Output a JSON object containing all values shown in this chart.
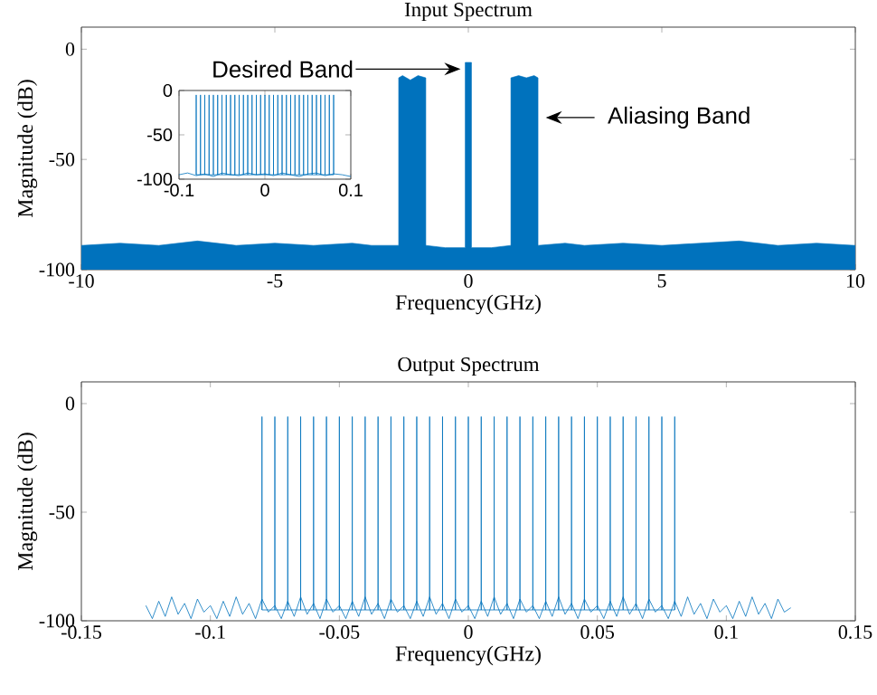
{
  "chart_data": [
    {
      "type": "area",
      "title": "Input Spectrum",
      "xlabel": "Frequency(GHz)",
      "ylabel": "Magnitude (dB)",
      "xlim": [
        -10,
        10
      ],
      "ylim": [
        -100,
        10
      ],
      "xticks": [
        -10,
        -5,
        0,
        5,
        10
      ],
      "yticks": [
        -100,
        -50,
        0
      ],
      "series": [
        {
          "color": "#0072bd",
          "x": [
            -10,
            -10,
            -9,
            -8,
            -7,
            -6,
            -5,
            -4,
            -3,
            -2.5,
            -1.8,
            -1.8,
            -1.7,
            -1.5,
            -1.3,
            -1.1,
            -1.1,
            -0.6,
            -0.08,
            -0.08,
            0.08,
            0.08,
            0.6,
            1.1,
            1.1,
            1.3,
            1.5,
            1.7,
            1.8,
            1.8,
            2.5,
            3,
            4,
            5,
            6,
            7,
            8,
            9,
            10,
            10
          ],
          "values": [
            -100,
            -89,
            -88,
            -89,
            -87,
            -89,
            -88,
            -89,
            -88,
            -89,
            -89,
            -13,
            -12,
            -14,
            -12,
            -13,
            -89,
            -90,
            -90,
            -6,
            -6,
            -90,
            -90,
            -89,
            -13,
            -12,
            -13,
            -12,
            -13,
            -89,
            -88,
            -89,
            -88,
            -89,
            -88,
            -87,
            -89,
            -88,
            -89,
            -100
          ]
        }
      ],
      "annotations": [
        {
          "text": "Desired Band",
          "x": -0.2,
          "y": -9
        },
        {
          "text": "Aliasing Band",
          "x": 2,
          "y": -31
        }
      ]
    },
    {
      "type": "line",
      "xlim": [
        -0.1,
        0.1
      ],
      "ylim": [
        -100,
        0
      ],
      "xticks": [
        -0.1,
        0,
        0.1
      ],
      "yticks": [
        -100,
        -50,
        0
      ],
      "series": [
        {
          "color": "#0072bd",
          "x": [
            -0.1,
            -0.09,
            -0.08,
            -0.07,
            -0.06,
            -0.05,
            -0.04,
            -0.03,
            -0.02,
            -0.01,
            0,
            0.01,
            0.02,
            0.03,
            0.04,
            0.05,
            0.06,
            0.07,
            0.08,
            0.09,
            0.1
          ],
          "values": [
            -95,
            -93,
            -96,
            -94,
            -97,
            -93,
            -95,
            -96,
            -93,
            -95,
            -94,
            -96,
            -93,
            -95,
            -97,
            -94,
            -93,
            -96,
            -94,
            -95,
            -97
          ]
        },
        {
          "color": "#0072bd",
          "x": [
            -0.08,
            -0.08,
            -0.08,
            -0.075,
            -0.075,
            -0.075,
            -0.07,
            -0.07,
            -0.07,
            -0.065,
            -0.065,
            -0.065,
            -0.06,
            -0.06,
            -0.06,
            -0.055,
            -0.055,
            -0.055,
            -0.05,
            -0.05,
            -0.05,
            -0.045,
            -0.045,
            -0.045,
            -0.04,
            -0.04,
            -0.04,
            -0.035,
            -0.035,
            -0.035,
            -0.03,
            -0.03,
            -0.03,
            -0.025,
            -0.025,
            -0.025,
            -0.02,
            -0.02,
            -0.02,
            -0.015,
            -0.015,
            -0.015,
            -0.01,
            -0.01,
            -0.01,
            -0.005,
            -0.005,
            -0.005,
            0,
            0,
            0,
            0.005,
            0.005,
            0.005,
            0.01,
            0.01,
            0.01,
            0.015,
            0.015,
            0.015,
            0.02,
            0.02,
            0.02,
            0.025,
            0.025,
            0.025,
            0.03,
            0.03,
            0.03,
            0.035,
            0.035,
            0.035,
            0.04,
            0.04,
            0.04,
            0.045,
            0.045,
            0.045,
            0.05,
            0.05,
            0.05,
            0.055,
            0.055,
            0.055,
            0.06,
            0.06,
            0.06,
            0.065,
            0.065,
            0.065,
            0.07,
            0.07,
            0.07,
            0.075,
            0.075,
            0.075,
            0.08,
            0.08,
            0.08
          ],
          "values": [
            -95,
            -5,
            -95,
            -95,
            -5,
            -95,
            -95,
            -5,
            -95,
            -95,
            -5,
            -95,
            -95,
            -5,
            -95,
            -95,
            -5,
            -95,
            -95,
            -5,
            -95,
            -95,
            -5,
            -95,
            -95,
            -5,
            -95,
            -95,
            -5,
            -95,
            -95,
            -5,
            -95,
            -95,
            -5,
            -95,
            -95,
            -5,
            -95,
            -95,
            -5,
            -95,
            -95,
            -5,
            -95,
            -95,
            -5,
            -95,
            -95,
            -5,
            -95,
            -95,
            -5,
            -95,
            -95,
            -5,
            -95,
            -95,
            -5,
            -95,
            -95,
            -5,
            -95,
            -95,
            -5,
            -95,
            -95,
            -5,
            -95,
            -95,
            -5,
            -95,
            -95,
            -5,
            -95,
            -95,
            -5,
            -95,
            -95,
            -5,
            -95,
            -95,
            -5,
            -95,
            -95,
            -5,
            -95,
            -95,
            -5,
            -95,
            -95,
            -5,
            -95,
            -95,
            -5,
            -95,
            -95,
            -5,
            -95
          ]
        }
      ]
    },
    {
      "type": "line",
      "title": "Output Spectrum",
      "xlabel": "Frequency(GHz)",
      "ylabel": "Magnitude (dB)",
      "xlim": [
        -0.15,
        0.15
      ],
      "ylim": [
        -100,
        10
      ],
      "xticks": [
        -0.15,
        -0.1,
        -0.05,
        0,
        0.05,
        0.1,
        0.15
      ],
      "yticks": [
        -100,
        -50,
        0
      ],
      "series": [
        {
          "color": "#0072bd",
          "x": [
            -0.125,
            -0.1225,
            -0.12,
            -0.1175,
            -0.115,
            -0.1125,
            -0.11,
            -0.1075,
            -0.105,
            -0.1025,
            -0.1,
            -0.0975,
            -0.095,
            -0.0925,
            -0.09,
            -0.0875,
            -0.085,
            -0.0825,
            -0.08,
            -0.0775,
            -0.075,
            -0.0725,
            -0.07,
            -0.0675,
            -0.065,
            -0.0625,
            -0.06,
            -0.0575,
            -0.055,
            -0.0525,
            -0.05,
            -0.0475,
            -0.045,
            -0.0425,
            -0.04,
            -0.0375,
            -0.035,
            -0.0325,
            -0.03,
            -0.0275,
            -0.025,
            -0.0225,
            -0.02,
            -0.0175,
            -0.015,
            -0.0125,
            -0.01,
            -0.0075,
            -0.005,
            -0.0025,
            0,
            0.0025,
            0.005,
            0.0075,
            0.01,
            0.0125,
            0.015,
            0.0175,
            0.02,
            0.0225,
            0.025,
            0.0275,
            0.03,
            0.0325,
            0.035,
            0.0375,
            0.04,
            0.0425,
            0.045,
            0.0475,
            0.05,
            0.0525,
            0.055,
            0.0575,
            0.06,
            0.0625,
            0.065,
            0.0675,
            0.07,
            0.0725,
            0.075,
            0.0775,
            0.08,
            0.0825,
            0.085,
            0.0875,
            0.09,
            0.0925,
            0.095,
            0.0975,
            0.1,
            0.1025,
            0.105,
            0.1075,
            0.11,
            0.1125,
            0.115,
            0.1175,
            0.12,
            0.1225,
            0.125
          ],
          "values": [
            -93,
            -99,
            -91,
            -98,
            -89,
            -97,
            -92,
            -99,
            -90,
            -96,
            -93,
            -99,
            -91,
            -98,
            -89,
            -97,
            -92,
            -99,
            -90,
            -96,
            -93,
            -99,
            -91,
            -98,
            -89,
            -97,
            -92,
            -99,
            -90,
            -96,
            -93,
            -99,
            -91,
            -98,
            -89,
            -97,
            -92,
            -99,
            -90,
            -96,
            -93,
            -99,
            -91,
            -98,
            -89,
            -97,
            -92,
            -99,
            -90,
            -96,
            -93,
            -99,
            -91,
            -98,
            -89,
            -97,
            -92,
            -99,
            -90,
            -96,
            -93,
            -99,
            -91,
            -98,
            -89,
            -97,
            -92,
            -99,
            -90,
            -96,
            -93,
            -99,
            -91,
            -98,
            -89,
            -97,
            -92,
            -99,
            -90,
            -96,
            -93,
            -99,
            -91,
            -98,
            -89,
            -97,
            -92,
            -99,
            -90,
            -96,
            -93,
            -99,
            -91,
            -98,
            -89,
            -97,
            -92,
            -99,
            -90,
            -96,
            -94
          ]
        },
        {
          "color": "#0072bd",
          "x": [
            -0.08,
            -0.08,
            -0.08,
            -0.075,
            -0.075,
            -0.075,
            -0.07,
            -0.07,
            -0.07,
            -0.065,
            -0.065,
            -0.065,
            -0.06,
            -0.06,
            -0.06,
            -0.055,
            -0.055,
            -0.055,
            -0.05,
            -0.05,
            -0.05,
            -0.045,
            -0.045,
            -0.045,
            -0.04,
            -0.04,
            -0.04,
            -0.035,
            -0.035,
            -0.035,
            -0.03,
            -0.03,
            -0.03,
            -0.025,
            -0.025,
            -0.025,
            -0.02,
            -0.02,
            -0.02,
            -0.015,
            -0.015,
            -0.015,
            -0.01,
            -0.01,
            -0.01,
            -0.005,
            -0.005,
            -0.005,
            0,
            0,
            0,
            0.005,
            0.005,
            0.005,
            0.01,
            0.01,
            0.01,
            0.015,
            0.015,
            0.015,
            0.02,
            0.02,
            0.02,
            0.025,
            0.025,
            0.025,
            0.03,
            0.03,
            0.03,
            0.035,
            0.035,
            0.035,
            0.04,
            0.04,
            0.04,
            0.045,
            0.045,
            0.045,
            0.05,
            0.05,
            0.05,
            0.055,
            0.055,
            0.055,
            0.06,
            0.06,
            0.06,
            0.065,
            0.065,
            0.065,
            0.07,
            0.07,
            0.07,
            0.075,
            0.075,
            0.075,
            0.08,
            0.08,
            0.08
          ],
          "values": [
            -95,
            -6,
            -95,
            -95,
            -6,
            -95,
            -95,
            -6,
            -95,
            -95,
            -6,
            -95,
            -95,
            -6,
            -95,
            -95,
            -6,
            -95,
            -95,
            -6,
            -95,
            -95,
            -6,
            -95,
            -95,
            -6,
            -95,
            -95,
            -6,
            -95,
            -95,
            -6,
            -95,
            -95,
            -6,
            -95,
            -95,
            -6,
            -95,
            -95,
            -6,
            -95,
            -95,
            -6,
            -95,
            -95,
            -6,
            -95,
            -95,
            -6,
            -95,
            -95,
            -6,
            -95,
            -95,
            -6,
            -95,
            -95,
            -6,
            -95,
            -95,
            -6,
            -95,
            -95,
            -6,
            -95,
            -95,
            -6,
            -95,
            -95,
            -6,
            -95,
            -95,
            -6,
            -95,
            -95,
            -6,
            -95,
            -95,
            -6,
            -95,
            -95,
            -6,
            -95,
            -95,
            -6,
            -95,
            -95,
            -6,
            -95,
            -95,
            -6,
            -95,
            -95,
            -6,
            -95,
            -95,
            -6,
            -95
          ]
        }
      ]
    }
  ]
}
